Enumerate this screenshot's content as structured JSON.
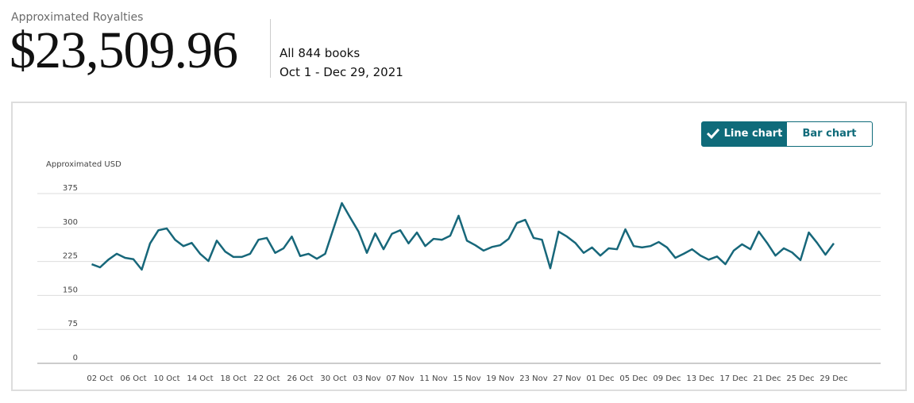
{
  "header": {
    "label": "Approximated Royalties",
    "amount": "$23,509.96",
    "books": "All 844 books",
    "range": "Oct 1 - Dec 29, 2021"
  },
  "toggle": {
    "options": [
      "Line chart",
      "Bar chart"
    ],
    "selected": 0
  },
  "chart_data": {
    "type": "line",
    "y_label": "Approximated USD",
    "color": "#17677a",
    "grid": true,
    "ylim": [
      0,
      375
    ],
    "yticks": [
      0,
      75,
      150,
      225,
      300,
      375
    ],
    "categories": [
      null,
      "02 Oct",
      null,
      null,
      null,
      "06 Oct",
      null,
      null,
      null,
      "10 Oct",
      null,
      null,
      null,
      "14 Oct",
      null,
      null,
      null,
      "18 Oct",
      null,
      null,
      null,
      "22 Oct",
      null,
      null,
      null,
      "26 Oct",
      null,
      null,
      null,
      "30 Oct",
      null,
      null,
      null,
      "03 Nov",
      null,
      null,
      null,
      "07 Nov",
      null,
      null,
      null,
      "11 Nov",
      null,
      null,
      null,
      "15 Nov",
      null,
      null,
      null,
      "19 Nov",
      null,
      null,
      null,
      "23 Nov",
      null,
      null,
      null,
      "27 Nov",
      null,
      null,
      null,
      "01 Dec",
      null,
      null,
      null,
      "05 Dec",
      null,
      null,
      null,
      "09 Dec",
      null,
      null,
      null,
      "13 Dec",
      null,
      null,
      null,
      "17 Dec",
      null,
      null,
      null,
      "21 Dec",
      null,
      null,
      null,
      "25 Dec",
      null,
      null,
      null,
      "29 Dec"
    ],
    "values": [
      219,
      212,
      229,
      242,
      233,
      230,
      207,
      265,
      294,
      298,
      273,
      259,
      266,
      242,
      226,
      271,
      247,
      235,
      235,
      242,
      273,
      277,
      244,
      254,
      280,
      237,
      242,
      231,
      242,
      298,
      354,
      322,
      291,
      244,
      287,
      252,
      286,
      294,
      265,
      289,
      259,
      275,
      273,
      282,
      326,
      271,
      261,
      249,
      257,
      261,
      275,
      310,
      317,
      277,
      273,
      210,
      291,
      280,
      266,
      244,
      256,
      238,
      254,
      252,
      296,
      259,
      256,
      259,
      268,
      256,
      233,
      242,
      252,
      238,
      229,
      236,
      219,
      249,
      263,
      252,
      291,
      266,
      238,
      254,
      245,
      228,
      289,
      266,
      240,
      265
    ]
  }
}
